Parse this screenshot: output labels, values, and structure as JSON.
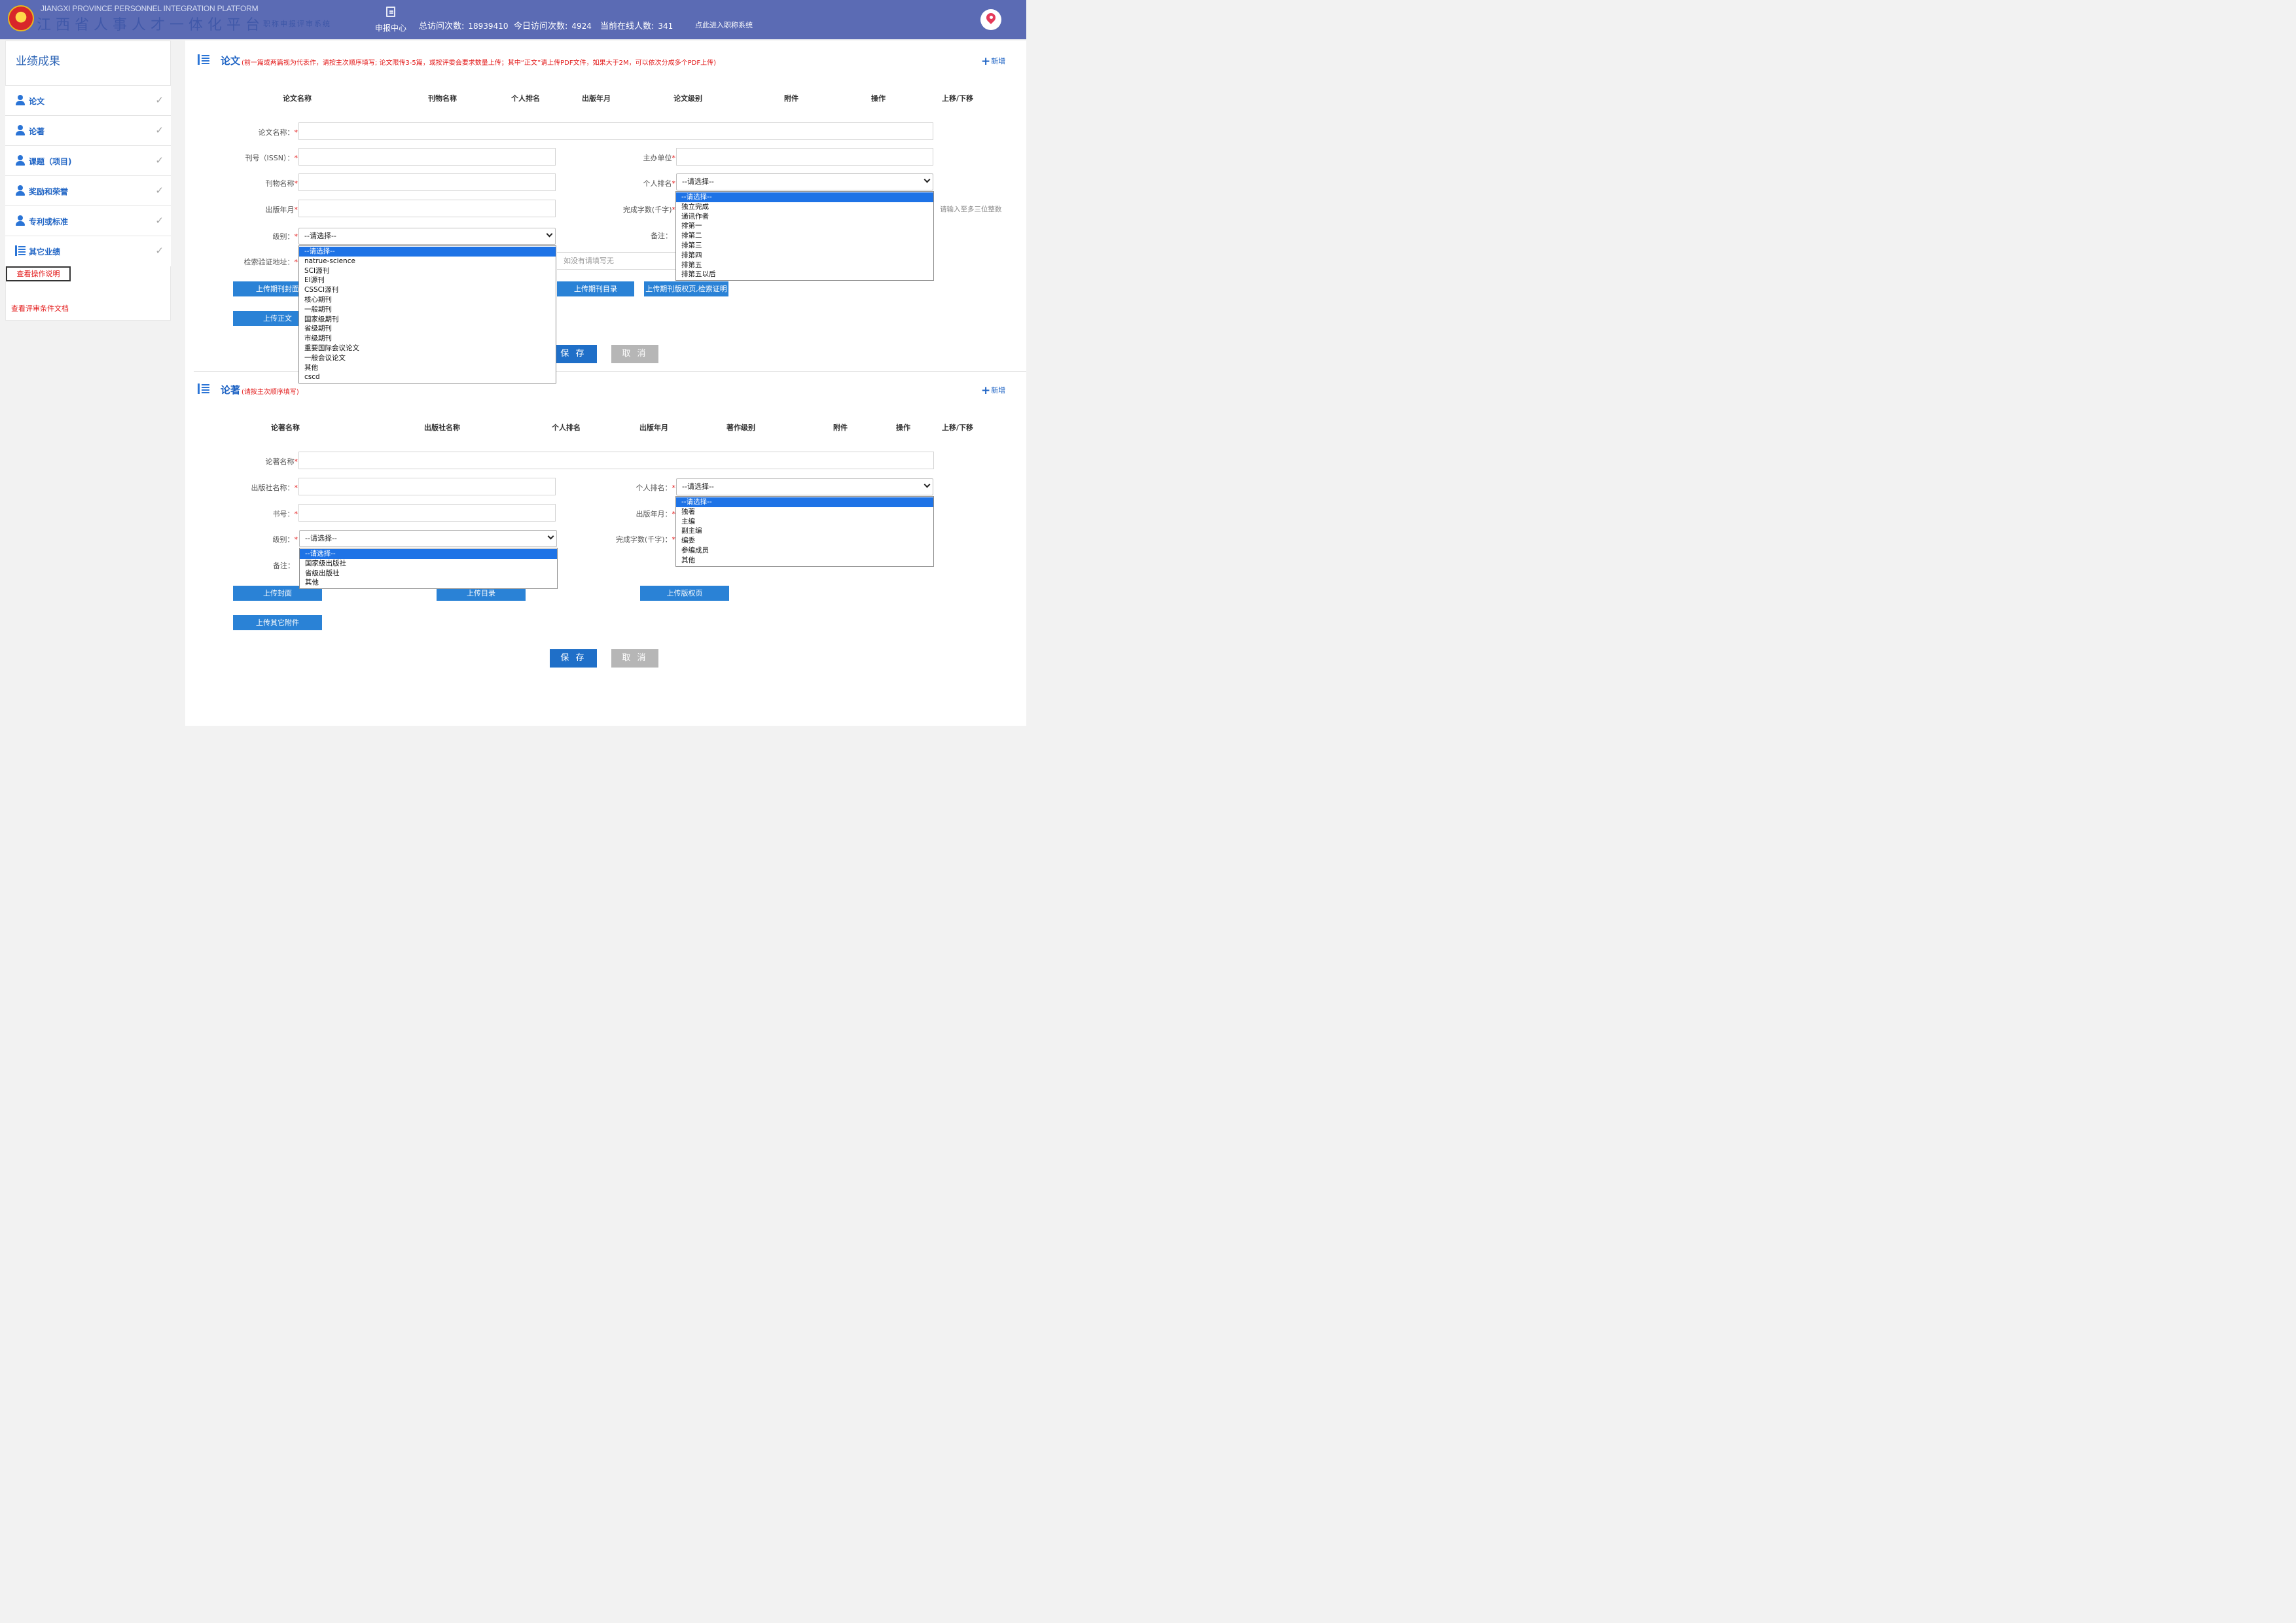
{
  "header": {
    "brand_en": "JIANGXI PROVINCE PERSONNEL INTEGRATION PLATFORM",
    "brand_cn": "江西省人事人才一体化平台",
    "brand_sub": "职称申报评审系统",
    "nav_label": "申报中心",
    "stats": [
      {
        "label": "总访问次数:",
        "value": "18939410"
      },
      {
        "label": "今日访问次数:",
        "value": "4924"
      },
      {
        "label": "当前在线人数:",
        "value": "341"
      }
    ],
    "title_link": "点此进入职称系统",
    "colors": {
      "bar": "#5b6bb4",
      "accent": "#1e63c4",
      "required": "#e31b1b"
    }
  },
  "sidebar": {
    "title": "业绩成果",
    "items": [
      {
        "label": "论文",
        "icon": "user-icon"
      },
      {
        "label": "论著",
        "icon": "user-icon"
      },
      {
        "label": "课题（项目)",
        "icon": "user-icon"
      },
      {
        "label": "奖励和荣誉",
        "icon": "user-icon"
      },
      {
        "label": "专利或标准",
        "icon": "user-icon"
      },
      {
        "label": "其它业绩",
        "icon": "list-icon"
      }
    ],
    "check_mark": "✓",
    "help_button": "查看操作说明",
    "criteria_link": "查看评审条件文档"
  },
  "paper": {
    "title": "论文",
    "note": "(前一篇或两篇视为代表作，请按主次顺序填写; 论文限传3-5篇，或按评委会要求数量上传；其中“正文”请上传PDF文件，如果大于2M，可以依次分成多个PDF上传)",
    "add_label": "新增",
    "columns": [
      "论文名称",
      "刊物名称",
      "个人排名",
      "出版年月",
      "论文级别",
      "附件",
      "操作",
      "上移/下移"
    ],
    "labels": {
      "name": "论文名称：",
      "issn": "刊号（ISSN）：",
      "sponsor": "主办单位",
      "journal": "刊物名称",
      "rank": "个人排名",
      "date": "出版年月",
      "words": "完成字数(千字)",
      "level": "级别：",
      "remark": "备注：",
      "search_url": "检索验证地址："
    },
    "search_placeholder": "如没有请填写无",
    "words_hint": "请输入至多三位整数",
    "level_select": {
      "value": "--请选择--",
      "options": [
        "--请选择--",
        "natrue-science",
        "SCI源刊",
        "EI源刊",
        "CSSCI源刊",
        "核心期刊",
        "一般期刊",
        "国家级期刊",
        "省级期刊",
        "市级期刊",
        "重要国际会议论文",
        "一般会议论文",
        "其他",
        "cscd"
      ]
    },
    "rank_select": {
      "value": "--请选择--",
      "options": [
        "--请选择--",
        "独立完成",
        "通讯作者",
        "排第一",
        "排第二",
        "排第三",
        "排第四",
        "排第五",
        "排第五以后"
      ]
    },
    "buttons": {
      "upload_cover": "上传期刊封面",
      "upload_toc": "上传期刊目录",
      "upload_copyright": "上传期刊版权页,检索证明",
      "upload_text": "上传正文",
      "save": "保 存",
      "cancel": "取 消"
    }
  },
  "book": {
    "title": "论著",
    "note": "(请按主次顺序填写)",
    "add_label": "新增",
    "columns": [
      "论著名称",
      "出版社名称",
      "个人排名",
      "出版年月",
      "著作级别",
      "附件",
      "操作",
      "上移/下移"
    ],
    "labels": {
      "name": "论著名称",
      "publisher": "出版社名称：",
      "rank": "个人排名：",
      "isbn": "书号：",
      "date": "出版年月：",
      "level": "级别：",
      "words": "完成字数(千字)：",
      "remark": "备注："
    },
    "level_select": {
      "value": "--请选择--",
      "options": [
        "--请选择--",
        "国家级出版社",
        "省级出版社",
        "其他"
      ]
    },
    "rank_select": {
      "value": "--请选择--",
      "options": [
        "--请选择--",
        "独著",
        "主编",
        "副主编",
        "编委",
        "参编成员",
        "其他"
      ]
    },
    "buttons": {
      "upload_cover": "上传封面",
      "upload_toc": "上传目录",
      "upload_copyright": "上传版权页",
      "upload_other": "上传其它附件",
      "save": "保 存",
      "cancel": "取 消"
    }
  }
}
